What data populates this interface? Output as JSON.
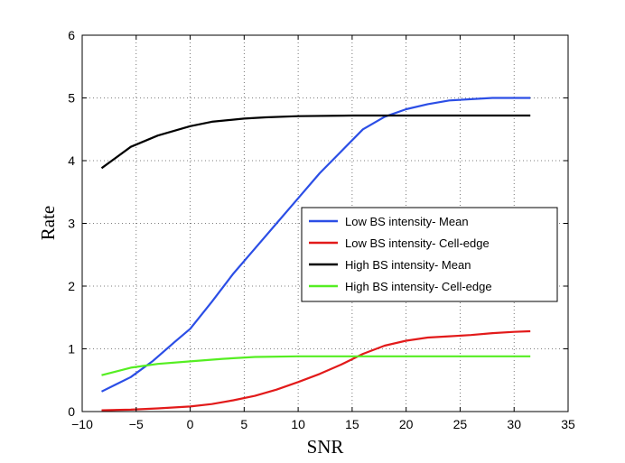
{
  "chart_data": {
    "type": "line",
    "title": "",
    "xlabel": "SNR",
    "ylabel": "Rate",
    "xlim": [
      -10,
      35
    ],
    "ylim": [
      0,
      6
    ],
    "xticks": [
      -10,
      -5,
      0,
      5,
      10,
      15,
      20,
      25,
      30,
      35
    ],
    "yticks": [
      0,
      1,
      2,
      3,
      4,
      5,
      6
    ],
    "xtick_labels": [
      "−10",
      "−5",
      "0",
      "5",
      "10",
      "15",
      "20",
      "25",
      "30",
      "35"
    ],
    "ytick_labels": [
      "0",
      "1",
      "2",
      "3",
      "4",
      "5",
      "6"
    ],
    "grid": true,
    "legend_position": "center-right",
    "series": [
      {
        "name": "Low BS intensity- Mean",
        "color": "#2b4ee6",
        "x": [
          -8.2,
          -5.5,
          -3.5,
          -1.5,
          0,
          2,
          4,
          6,
          8,
          10,
          12,
          14,
          16,
          18,
          20,
          22,
          24,
          26,
          28,
          30,
          31.5
        ],
        "y": [
          0.32,
          0.55,
          0.8,
          1.1,
          1.32,
          1.75,
          2.2,
          2.6,
          3.0,
          3.4,
          3.8,
          4.15,
          4.5,
          4.7,
          4.82,
          4.9,
          4.96,
          4.98,
          5.0,
          5.0,
          5.0
        ]
      },
      {
        "name": "Low BS intensity- Cell-edge",
        "color": "#e21a1a",
        "x": [
          -8.2,
          -5.5,
          -3,
          0,
          2,
          4,
          6,
          8,
          10,
          12,
          14,
          16,
          18,
          20,
          22,
          24,
          26,
          28,
          30,
          31.5
        ],
        "y": [
          0.02,
          0.03,
          0.05,
          0.08,
          0.12,
          0.18,
          0.25,
          0.35,
          0.47,
          0.6,
          0.75,
          0.92,
          1.05,
          1.13,
          1.18,
          1.2,
          1.22,
          1.25,
          1.27,
          1.28
        ]
      },
      {
        "name": "High BS intensity- Mean",
        "color": "#000000",
        "x": [
          -8.2,
          -5.5,
          -3,
          0,
          2,
          5,
          7,
          10,
          15,
          20,
          25,
          31.5
        ],
        "y": [
          3.88,
          4.22,
          4.4,
          4.55,
          4.62,
          4.67,
          4.69,
          4.71,
          4.72,
          4.72,
          4.72,
          4.72
        ]
      },
      {
        "name": "High BS intensity- Cell-edge",
        "color": "#55ee22",
        "x": [
          -8.2,
          -5.5,
          -3,
          0,
          3,
          6,
          10,
          15,
          20,
          25,
          31.5
        ],
        "y": [
          0.58,
          0.7,
          0.76,
          0.8,
          0.84,
          0.87,
          0.88,
          0.88,
          0.88,
          0.88,
          0.88
        ]
      }
    ]
  }
}
